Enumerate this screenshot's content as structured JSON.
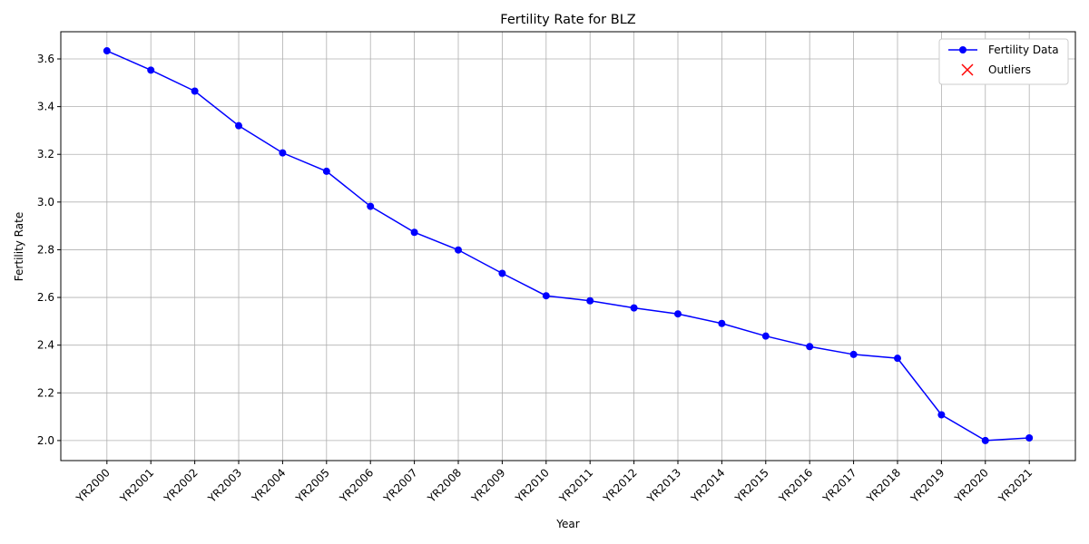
{
  "chart_data": {
    "type": "line",
    "title": "Fertility Rate for BLZ",
    "xlabel": "Year",
    "ylabel": "Fertility Rate",
    "categories": [
      "YR2000",
      "YR2001",
      "YR2002",
      "YR2003",
      "YR2004",
      "YR2005",
      "YR2006",
      "YR2007",
      "YR2008",
      "YR2009",
      "YR2010",
      "YR2011",
      "YR2012",
      "YR2013",
      "YR2014",
      "YR2015",
      "YR2016",
      "YR2017",
      "YR2018",
      "YR2019",
      "YR2020",
      "YR2021"
    ],
    "series": [
      {
        "name": "Fertility Data",
        "color": "#0000ff",
        "marker": "o",
        "values": [
          3.634,
          3.553,
          3.465,
          3.32,
          3.206,
          3.129,
          2.982,
          2.873,
          2.799,
          2.701,
          2.607,
          2.586,
          2.556,
          2.531,
          2.491,
          2.438,
          2.394,
          2.361,
          2.345,
          2.108,
          2.0,
          2.011
        ]
      },
      {
        "name": "Outliers",
        "color": "#ff0000",
        "marker": "x",
        "values": [
          null,
          null,
          null,
          null,
          null,
          null,
          null,
          null,
          null,
          null,
          null,
          null,
          null,
          null,
          null,
          null,
          null,
          null,
          null,
          null,
          null,
          null
        ]
      }
    ],
    "ylim": [
      1.916,
      3.714
    ],
    "yticks": [
      {
        "value": 2.0,
        "label": "2.0"
      },
      2.2,
      2.4,
      2.6,
      2.8,
      {
        "value": 3.0,
        "label": "3.0"
      },
      3.2,
      3.4,
      3.6
    ],
    "grid": true,
    "legend": "upper right"
  }
}
